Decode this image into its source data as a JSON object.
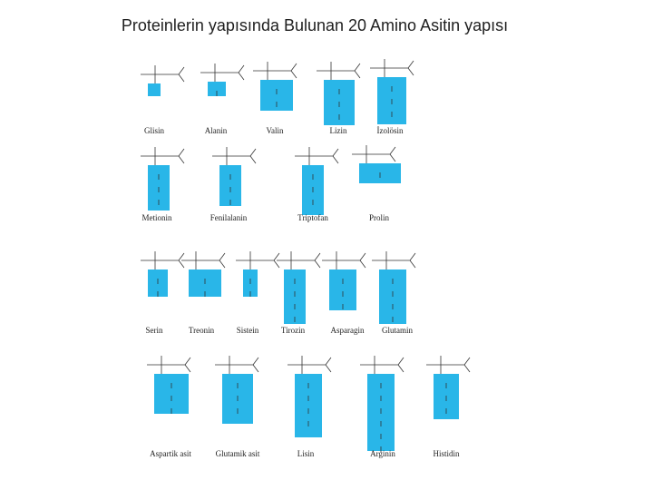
{
  "title": "Proteinlerin yapısında Bulunan 20  Amino Asitin yapısı",
  "amino_acids": [
    "Glisin",
    "Alanin",
    "Valin",
    "Lizin",
    "İzolösin",
    "Metionin",
    "Fenilalanin",
    "Triptofan",
    "Prolin",
    "Serin",
    "Treonin",
    "Sistein",
    "Tirozin",
    "Asparagin",
    "Glutamin",
    "Aspartik asit",
    "Glutamik asit",
    "Lisin",
    "Arginin",
    "Histidin"
  ]
}
